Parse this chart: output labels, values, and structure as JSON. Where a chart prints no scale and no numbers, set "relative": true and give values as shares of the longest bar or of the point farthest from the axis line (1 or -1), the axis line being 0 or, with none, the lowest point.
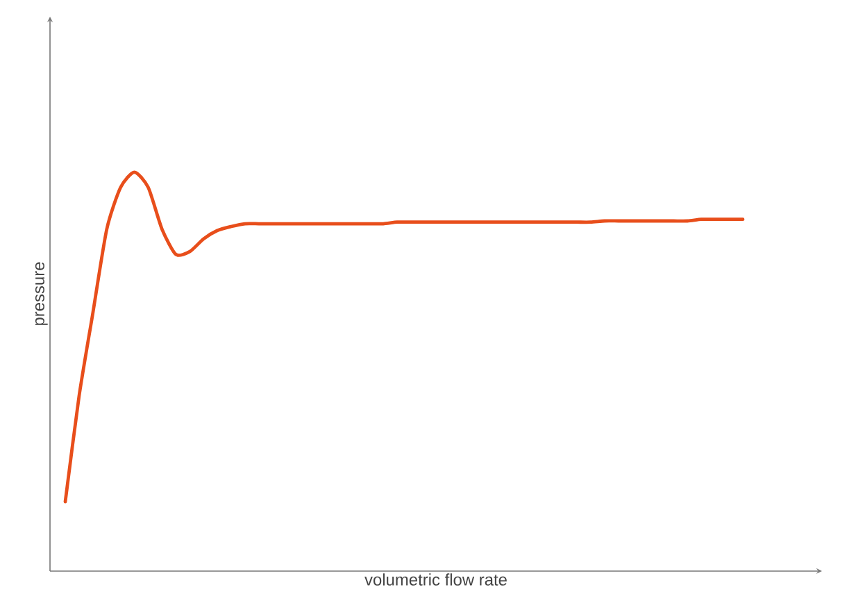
{
  "chart_data": {
    "type": "line",
    "relative": true,
    "xlabel": "volumetric flow rate",
    "ylabel": "pressure",
    "color": "#e84e1b",
    "categories": [
      null,
      null,
      null,
      null,
      null,
      null,
      null,
      null,
      null,
      null,
      null,
      null,
      null,
      null,
      null,
      null,
      null,
      null,
      null,
      null,
      null,
      null,
      null,
      null,
      null,
      null,
      null,
      null,
      null,
      null,
      null,
      null,
      null,
      null,
      null,
      null,
      null,
      null,
      null,
      null,
      null,
      null,
      null,
      null,
      null,
      null,
      null,
      null,
      null,
      null
    ],
    "values": [
      0.174,
      0.439,
      0.648,
      0.857,
      0.962,
      1.0,
      0.962,
      0.857,
      0.794,
      0.801,
      0.833,
      0.854,
      0.864,
      0.871,
      0.871,
      0.871,
      0.871,
      0.871,
      0.871,
      0.871,
      0.871,
      0.871,
      0.871,
      0.871,
      0.875,
      0.875,
      0.875,
      0.875,
      0.875,
      0.875,
      0.875,
      0.875,
      0.875,
      0.875,
      0.875,
      0.875,
      0.875,
      0.875,
      0.875,
      0.878,
      0.878,
      0.878,
      0.878,
      0.878,
      0.878,
      0.878,
      0.882,
      0.882,
      0.882,
      0.882
    ]
  }
}
